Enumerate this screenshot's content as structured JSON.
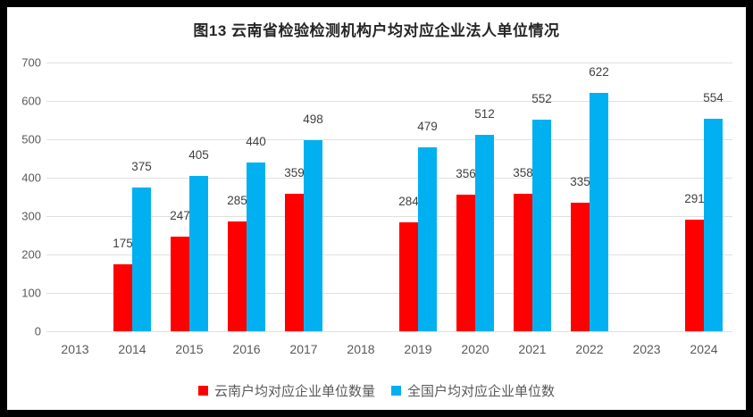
{
  "title": "图13  云南省检验检测机构户均对应企业法人单位情况",
  "colors": {
    "frame_border": "#000000",
    "background": "#FFFFFF",
    "gridline": "#E0E0E0",
    "axis_text": "#595959",
    "data_label_text": "#404040",
    "title_text": "#262626",
    "series_yunnan": "#FF0000",
    "series_national": "#00B0F0"
  },
  "chart_data": {
    "type": "bar",
    "title": "图13  云南省检验检测机构户均对应企业法人单位情况",
    "categories": [
      "2013",
      "2014",
      "2015",
      "2016",
      "2017",
      "2018",
      "2019",
      "2020",
      "2021",
      "2022",
      "2023",
      "2024"
    ],
    "series": [
      {
        "name": "云南户均对应企业单位数量",
        "color": "#FF0000",
        "values": [
          null,
          175,
          247,
          285,
          359,
          null,
          284,
          356,
          358,
          335,
          null,
          291
        ]
      },
      {
        "name": "全国户均对应企业单位数",
        "color": "#00B0F0",
        "values": [
          null,
          375,
          405,
          440,
          498,
          null,
          479,
          512,
          552,
          622,
          null,
          554
        ]
      }
    ],
    "xlabel": "",
    "ylabel": "",
    "ylim": [
      0,
      700
    ],
    "yticks": [
      0,
      100,
      200,
      300,
      400,
      500,
      600,
      700
    ],
    "grid": true,
    "data_labels": true,
    "legend_position": "bottom"
  }
}
